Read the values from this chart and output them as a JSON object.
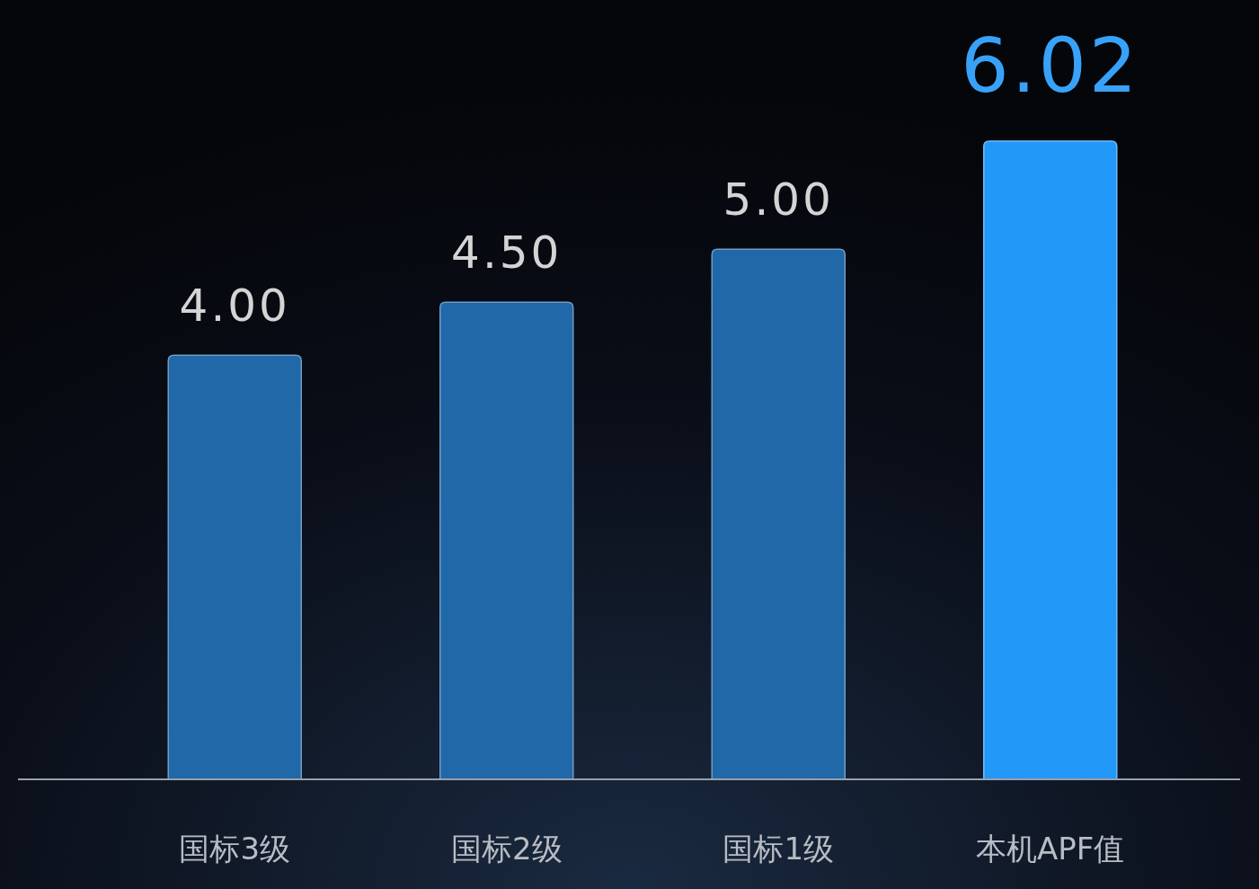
{
  "chart_data": {
    "type": "bar",
    "categories": [
      "国标3级",
      "国标2级",
      "国标1级",
      "本机APF值"
    ],
    "values": [
      4.0,
      4.5,
      5.0,
      6.02
    ],
    "value_labels": [
      "4.00",
      "4.50",
      "5.00",
      "6.02"
    ],
    "colors": [
      "#2068a8",
      "#2068a8",
      "#2068a8",
      "#2298f8"
    ]
  }
}
